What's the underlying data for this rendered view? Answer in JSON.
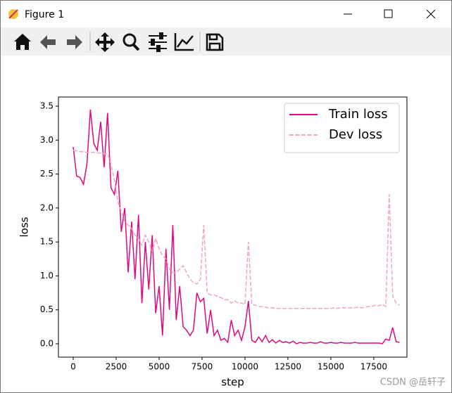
{
  "window": {
    "title": "Figure 1"
  },
  "watermark": "CSDN @岳轩子",
  "chart_data": {
    "type": "line",
    "x_label": "step",
    "y_label": "loss",
    "x": [
      0,
      200,
      400,
      600,
      800,
      1000,
      1200,
      1400,
      1600,
      1800,
      2000,
      2200,
      2400,
      2600,
      2800,
      3000,
      3200,
      3400,
      3600,
      3800,
      4000,
      4200,
      4400,
      4600,
      4800,
      5000,
      5200,
      5400,
      5600,
      5800,
      6000,
      6200,
      6400,
      6600,
      6800,
      7000,
      7200,
      7400,
      7600,
      7800,
      8000,
      8200,
      8400,
      8600,
      8800,
      9000,
      9200,
      9400,
      9600,
      9800,
      10000,
      10200,
      10400,
      10600,
      10800,
      11000,
      11200,
      11400,
      11600,
      11800,
      12000,
      12200,
      12400,
      12600,
      12800,
      13000,
      13200,
      13400,
      13600,
      13800,
      14000,
      14200,
      14400,
      14600,
      14800,
      15000,
      15200,
      15400,
      15600,
      15800,
      16000,
      16200,
      16400,
      16600,
      16800,
      17000,
      17200,
      17400,
      17600,
      17800,
      18000,
      18200,
      18400,
      18600,
      18800,
      19000
    ],
    "series": [
      {
        "name": "Train loss",
        "color": "#dc0a82",
        "linestyle": "solid",
        "values": [
          2.9,
          2.47,
          2.45,
          2.35,
          2.65,
          3.45,
          2.95,
          2.85,
          3.27,
          2.6,
          3.4,
          2.3,
          2.2,
          2.55,
          1.65,
          2.0,
          1.05,
          1.8,
          0.95,
          1.9,
          0.6,
          1.5,
          0.8,
          1.6,
          0.45,
          0.85,
          0.12,
          1.4,
          0.5,
          1.75,
          0.35,
          0.85,
          0.25,
          0.2,
          0.12,
          0.2,
          0.75,
          0.62,
          0.67,
          0.15,
          0.5,
          0.12,
          0.2,
          0.05,
          0.08,
          0.02,
          0.35,
          0.12,
          0.2,
          0.05,
          0.25,
          0.63,
          0.05,
          0.02,
          0.1,
          0.03,
          0.12,
          0.02,
          0.06,
          0.01,
          0.05,
          0.02,
          0.03,
          0.01,
          0.04,
          0.0,
          0.02,
          0.01,
          0.01,
          0.02,
          0.01,
          0.01,
          0.03,
          0.01,
          0.01,
          0.02,
          0.01,
          0.01,
          0.02,
          0.01,
          0.01,
          0.01,
          0.02,
          0.01,
          0.01,
          0.01,
          0.01,
          0.01,
          0.01,
          0.01,
          0.0,
          0.07,
          0.05,
          0.24,
          0.03,
          0.02
        ]
      },
      {
        "name": "Dev loss",
        "color": "#f3a3c3",
        "linestyle": "dashed",
        "values": [
          2.85,
          2.84,
          2.83,
          2.83,
          2.82,
          2.82,
          2.82,
          2.81,
          2.81,
          2.8,
          2.8,
          2.65,
          2.4,
          2.1,
          1.95,
          1.8,
          1.75,
          1.7,
          1.6,
          1.55,
          1.45,
          1.6,
          1.5,
          1.35,
          1.55,
          1.4,
          1.3,
          1.25,
          1.1,
          1.05,
          1.05,
          1.1,
          1.15,
          1.05,
          0.95,
          0.9,
          0.88,
          0.95,
          1.75,
          0.75,
          0.72,
          0.72,
          0.7,
          0.68,
          0.65,
          0.65,
          0.6,
          0.63,
          0.6,
          0.6,
          0.58,
          1.5,
          0.58,
          0.57,
          0.55,
          0.55,
          0.54,
          0.53,
          0.53,
          0.52,
          0.52,
          0.52,
          0.52,
          0.52,
          0.52,
          0.52,
          0.52,
          0.52,
          0.52,
          0.52,
          0.52,
          0.52,
          0.52,
          0.52,
          0.52,
          0.52,
          0.53,
          0.52,
          0.53,
          0.53,
          0.53,
          0.53,
          0.53,
          0.54,
          0.53,
          0.54,
          0.55,
          0.55,
          0.57,
          0.56,
          0.58,
          0.55,
          2.2,
          0.7,
          0.6,
          0.57
        ]
      }
    ],
    "xlim": [
      -860,
      19430
    ],
    "ylim": [
      -0.197,
      3.635
    ],
    "xticks": [
      0,
      2500,
      5000,
      7500,
      10000,
      12500,
      15000,
      17500
    ],
    "yticks": [
      {
        "value": 0,
        "label": "0.0"
      },
      0.5,
      {
        "value": 1,
        "label": "1.0"
      },
      1.5,
      {
        "value": 2,
        "label": "2.0"
      },
      2.5,
      {
        "value": 3,
        "label": "3.0"
      },
      3.5
    ],
    "legend": "upper right"
  }
}
